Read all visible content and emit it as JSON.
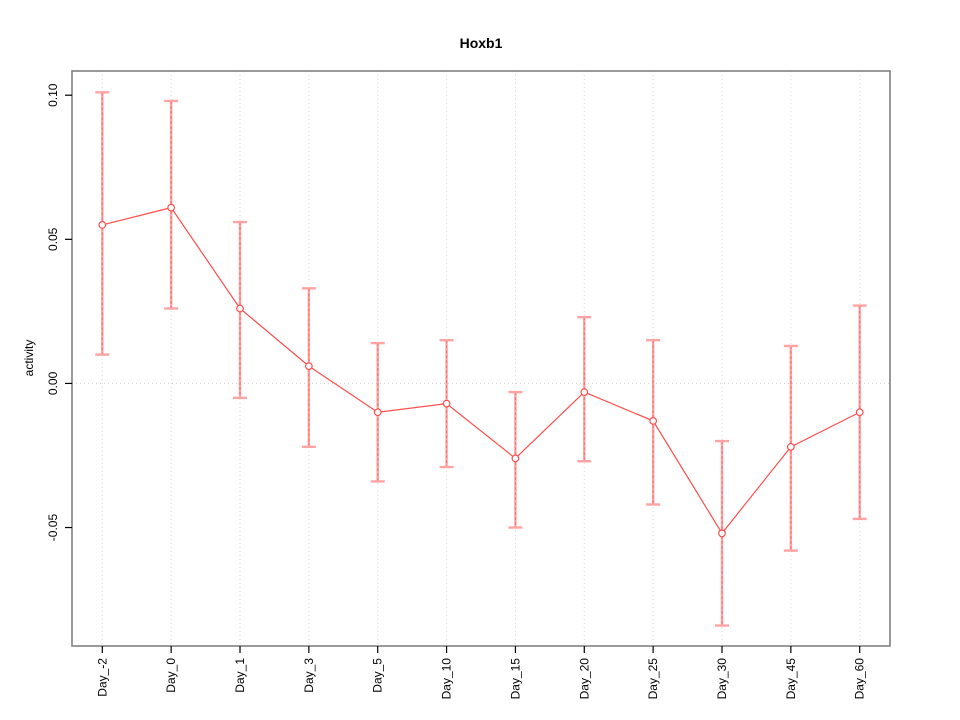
{
  "chart_data": {
    "type": "line",
    "title": "Hoxb1",
    "xlabel": "",
    "ylabel": "activity",
    "categories": [
      "Day_-2",
      "Day_0",
      "Day_1",
      "Day_3",
      "Day_5",
      "Day_10",
      "Day_15",
      "Day_20",
      "Day_25",
      "Day_30",
      "Day_45",
      "Day_60"
    ],
    "series": [
      {
        "name": "activity",
        "values": [
          0.055,
          0.061,
          0.026,
          0.006,
          -0.01,
          -0.007,
          -0.026,
          -0.003,
          -0.013,
          -0.052,
          -0.022,
          -0.01
        ],
        "upper": [
          0.101,
          0.098,
          0.056,
          0.033,
          0.014,
          0.015,
          -0.003,
          0.023,
          0.015,
          -0.02,
          0.013,
          0.027
        ],
        "lower": [
          0.01,
          0.026,
          -0.005,
          -0.022,
          -0.034,
          -0.029,
          -0.05,
          -0.027,
          -0.042,
          -0.084,
          -0.058,
          -0.047
        ]
      }
    ],
    "yticks": [
      0.1,
      0.05,
      0.0,
      -0.05
    ],
    "ytick_labels": [
      "0.10",
      "0.05",
      "0.00",
      "-0.05"
    ],
    "ylim": [
      -0.0911,
      0.1084
    ],
    "grid": {
      "vertical_dotted": true,
      "zero_line_dotted": true,
      "legend": "none"
    },
    "colors": {
      "line": "#ff4d4d",
      "point_stroke": "#ff4d4d",
      "point_fill": "#ffffff",
      "error_bar": "#ffa3a3",
      "error_bar_dash": "#f86c6c",
      "grid": "#d9d9d9",
      "zero_line": "#cfcfcf",
      "box": "#808080",
      "tick": "#000000",
      "text": "#000000"
    }
  }
}
